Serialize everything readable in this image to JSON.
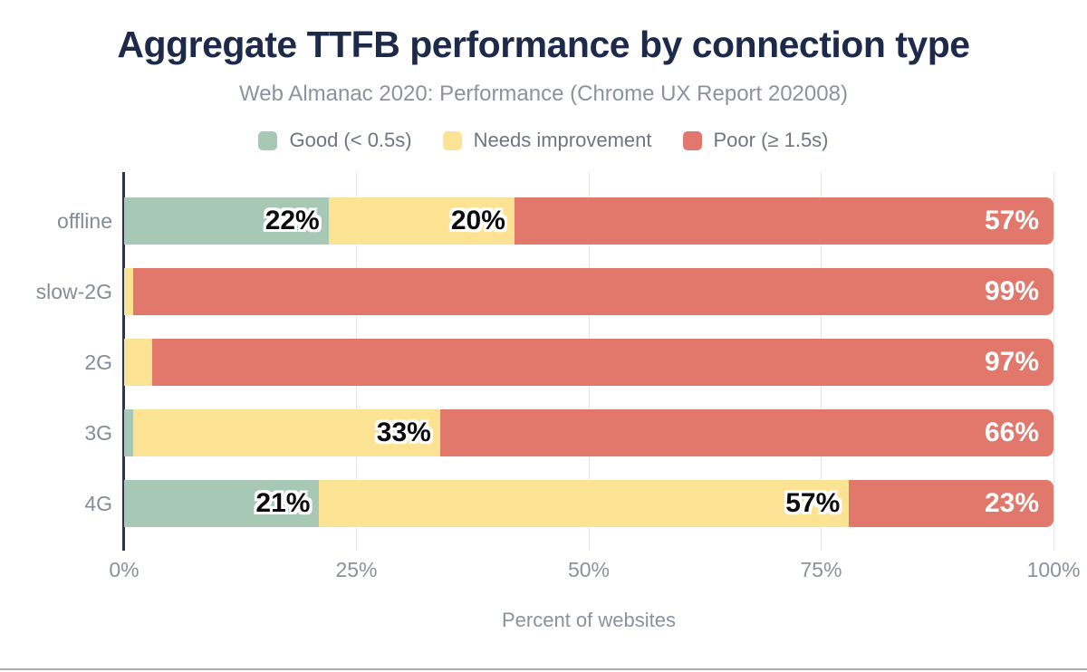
{
  "chart_data": {
    "type": "bar",
    "orientation": "horizontal",
    "stacked": true,
    "title": "Aggregate TTFB performance by connection type",
    "subtitle": "Web Almanac 2020: Performance (Chrome UX Report 202008)",
    "xlabel": "Percent of websites",
    "categories": [
      "offline",
      "slow-2G",
      "2G",
      "3G",
      "4G"
    ],
    "series": [
      {
        "name": "Good (< 0.5s)",
        "color": "#a6c8b5",
        "values": [
          22,
          0,
          0,
          1,
          21
        ]
      },
      {
        "name": "Needs improvement",
        "color": "#fce394",
        "values": [
          20,
          1,
          3,
          33,
          57
        ]
      },
      {
        "name": "Poor (≥ 1.5s)",
        "color": "#e1786b",
        "values": [
          57,
          99,
          97,
          66,
          23
        ]
      }
    ],
    "value_label_suffix": "%",
    "x_ticks": [
      "0%",
      "25%",
      "50%",
      "75%",
      "100%"
    ],
    "xlim": [
      0,
      100
    ],
    "grid": true,
    "legend_position": "top"
  },
  "style_colors": {
    "title": "#1e2a49",
    "subtitle": "#8b929f",
    "legend_text": "#6e7582",
    "axis_text": "#8a919c",
    "grid_line": "#e4e6ea",
    "axis_line": "#2c334d",
    "dark_label": "#0c0c0c",
    "light_label": "#ffffff",
    "bottom_rule": "#a9aeb6"
  }
}
